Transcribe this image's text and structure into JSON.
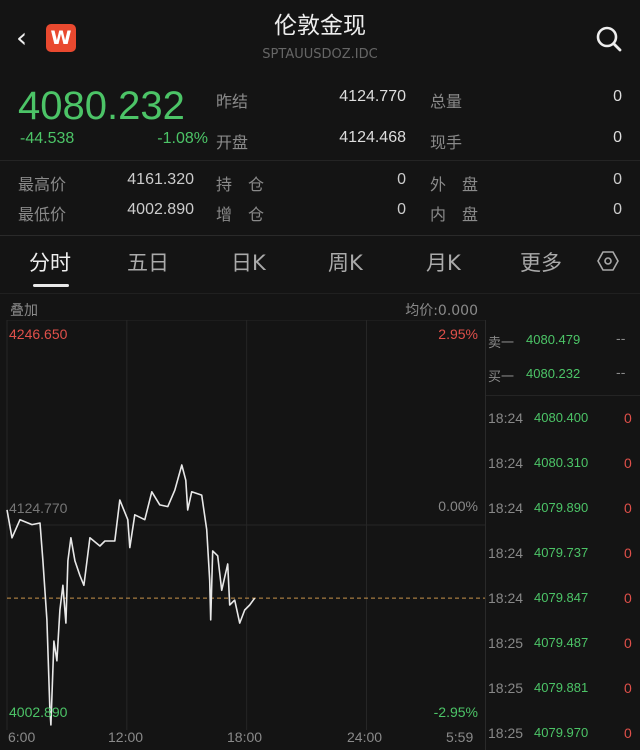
{
  "header": {
    "title": "伦敦金现",
    "code": "SPTAUUSDOZ.IDC",
    "logo_letter": "W",
    "back_icon": "chevron-left-icon",
    "search_icon": "search-icon"
  },
  "quote": {
    "price": "4080.232",
    "change": "-44.538",
    "change_pct": "-1.08%",
    "stats": [
      {
        "label": "昨结",
        "value": "4124.770"
      },
      {
        "label": "总量",
        "value": "0"
      },
      {
        "label": "开盘",
        "value": "4124.468"
      },
      {
        "label": "现手",
        "value": "0"
      },
      {
        "label": "最高价",
        "value": "4161.320"
      },
      {
        "label": "持　仓",
        "value": "0"
      },
      {
        "label": "外　盘",
        "value": "0"
      },
      {
        "label": "最低价",
        "value": "4002.890"
      },
      {
        "label": "增　仓",
        "value": "0"
      },
      {
        "label": "内　盘",
        "value": "0"
      }
    ]
  },
  "tabs": [
    "分时",
    "五日",
    "日K",
    "周K",
    "月K",
    "更多"
  ],
  "settings_icon": "hexagon-settings-icon",
  "chart_header": {
    "overlay": "叠加",
    "avg": "均价:0.000"
  },
  "colors": {
    "up": "#e0504a",
    "down": "#4cc467",
    "line": "#e8e8e8",
    "last_price_line": "#c8924a"
  },
  "chart_data": {
    "type": "line",
    "y_labels": {
      "top": "4246.650",
      "mid": "4124.770",
      "bottom": "4002.890",
      "top_pct": "2.95%",
      "mid_pct": "0.00%",
      "bottom_pct": "-2.95%"
    },
    "ylim": [
      4002.89,
      4246.65
    ],
    "prev_settle": 4124.77,
    "last_price": 4080.232,
    "x_ticks": [
      "6:00",
      "12:00",
      "18:00",
      "24:00",
      "5:59"
    ],
    "points": [
      [
        "6:00",
        4134
      ],
      [
        "6:15",
        4117
      ],
      [
        "6:39",
        4128
      ],
      [
        "7:15",
        4125
      ],
      [
        "7:39",
        4126
      ],
      [
        "7:48",
        4103
      ],
      [
        "8:00",
        4067
      ],
      [
        "8:09",
        4012
      ],
      [
        "8:12",
        4002.89
      ],
      [
        "8:21",
        4054
      ],
      [
        "8:30",
        4042
      ],
      [
        "8:39",
        4073
      ],
      [
        "8:48",
        4088
      ],
      [
        "8:57",
        4065
      ],
      [
        "9:03",
        4103
      ],
      [
        "9:12",
        4117
      ],
      [
        "9:24",
        4103
      ],
      [
        "9:39",
        4094
      ],
      [
        "9:51",
        4088
      ],
      [
        "10:09",
        4117
      ],
      [
        "10:39",
        4112
      ],
      [
        "10:54",
        4115
      ],
      [
        "11:24",
        4115
      ],
      [
        "11:39",
        4140
      ],
      [
        "12:03",
        4128
      ],
      [
        "12:09",
        4111
      ],
      [
        "12:24",
        4131
      ],
      [
        "12:54",
        4128
      ],
      [
        "13:15",
        4145
      ],
      [
        "13:39",
        4137
      ],
      [
        "14:03",
        4136
      ],
      [
        "14:24",
        4146
      ],
      [
        "14:45",
        4161.32
      ],
      [
        "14:57",
        4152
      ],
      [
        "15:03",
        4134
      ],
      [
        "15:15",
        4145
      ],
      [
        "15:45",
        4143
      ],
      [
        "16:00",
        4122
      ],
      [
        "16:09",
        4091
      ],
      [
        "16:12",
        4067
      ],
      [
        "16:18",
        4109
      ],
      [
        "16:33",
        4106
      ],
      [
        "16:45",
        4085
      ],
      [
        "17:03",
        4101
      ],
      [
        "17:09",
        4076
      ],
      [
        "17:24",
        4079
      ],
      [
        "17:39",
        4065
      ],
      [
        "17:54",
        4073
      ],
      [
        "18:09",
        4076
      ],
      [
        "18:24",
        4080.232
      ]
    ]
  },
  "order_book": [
    {
      "label": "卖一",
      "price": "4080.479",
      "vol": "--"
    },
    {
      "label": "买一",
      "price": "4080.232",
      "vol": "--"
    }
  ],
  "ticks": [
    {
      "time": "18:24",
      "price": "4080.400",
      "vol": "0"
    },
    {
      "time": "18:24",
      "price": "4080.310",
      "vol": "0"
    },
    {
      "time": "18:24",
      "price": "4079.890",
      "vol": "0"
    },
    {
      "time": "18:24",
      "price": "4079.737",
      "vol": "0"
    },
    {
      "time": "18:24",
      "price": "4079.847",
      "vol": "0"
    },
    {
      "time": "18:25",
      "price": "4079.487",
      "vol": "0"
    },
    {
      "time": "18:25",
      "price": "4079.881",
      "vol": "0"
    },
    {
      "time": "18:25",
      "price": "4079.970",
      "vol": "0"
    }
  ]
}
